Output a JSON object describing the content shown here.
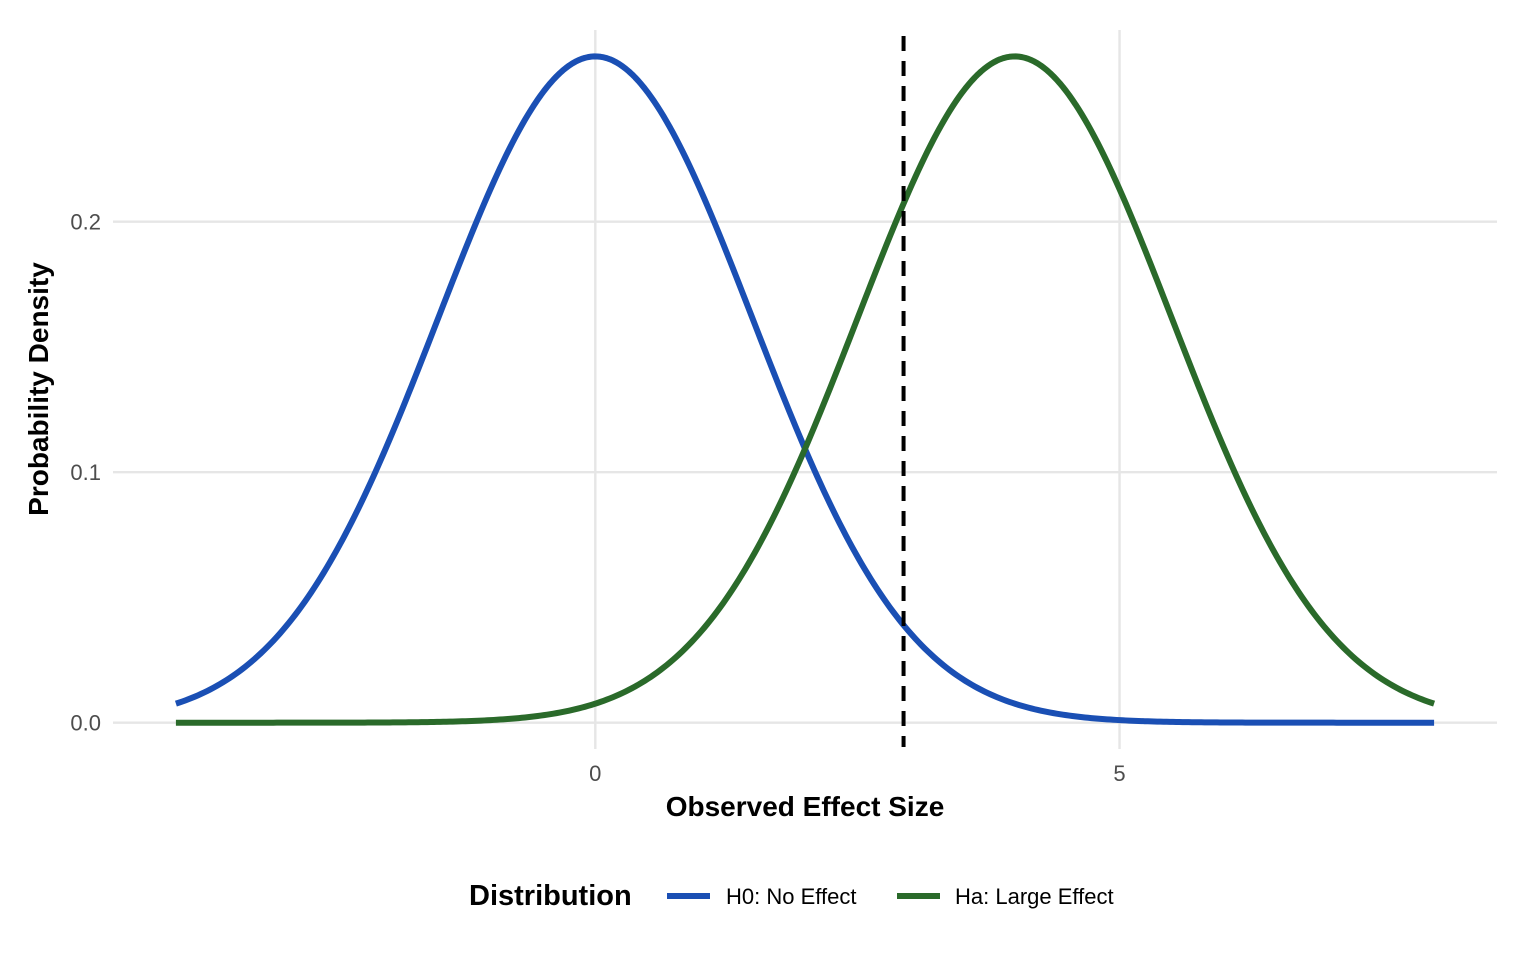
{
  "chart_data": {
    "type": "line",
    "xlabel": "Observed Effect Size",
    "ylabel": "Probability Density",
    "xlim": [
      -4.6,
      8.6
    ],
    "ylim": [
      -0.0105,
      0.2765
    ],
    "x_ticks": [
      0,
      5
    ],
    "x_tick_labels": [
      "0",
      "5"
    ],
    "y_ticks": [
      0.0,
      0.1,
      0.2
    ],
    "y_tick_labels": [
      "0.0",
      "0.1",
      "0.2"
    ],
    "x_range": [
      -4,
      8
    ],
    "grid": true,
    "series": [
      {
        "name": "H0: No Effect",
        "distribution": "normal",
        "mean": 0,
        "sd": 1.5,
        "color": "#1a4fb4"
      },
      {
        "name": "Ha: Large Effect",
        "distribution": "normal",
        "mean": 4,
        "sd": 1.5,
        "color": "#2a6a2a"
      }
    ],
    "reference_line": {
      "x": 2.94,
      "style": "dashed",
      "color": "#000000"
    },
    "legend": {
      "title": "Distribution",
      "position": "bottom"
    }
  }
}
